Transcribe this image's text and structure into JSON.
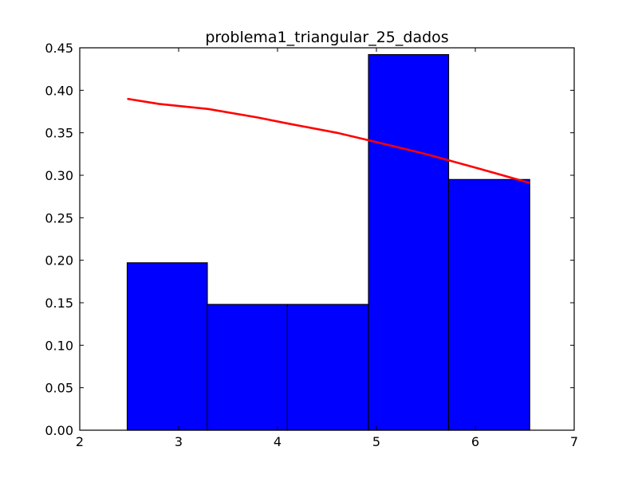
{
  "chart_data": {
    "type": "bar",
    "title": "problema1_triangular_25_dados",
    "xlabel": "",
    "ylabel": "",
    "xlim": [
      2,
      7
    ],
    "ylim": [
      0,
      0.45
    ],
    "x_ticks": [
      "2",
      "3",
      "4",
      "5",
      "6",
      "7"
    ],
    "y_ticks": [
      "0.00",
      "0.05",
      "0.10",
      "0.15",
      "0.20",
      "0.25",
      "0.30",
      "0.35",
      "0.40",
      "0.45"
    ],
    "grid": false,
    "bars": [
      {
        "x0": 2.48,
        "x1": 3.29,
        "value": 0.197
      },
      {
        "x0": 3.29,
        "x1": 4.1,
        "value": 0.148
      },
      {
        "x0": 4.1,
        "x1": 4.92,
        "value": 0.148
      },
      {
        "x0": 4.92,
        "x1": 5.73,
        "value": 0.442
      },
      {
        "x0": 5.73,
        "x1": 6.55,
        "value": 0.295
      }
    ],
    "line": {
      "x": [
        2.48,
        2.8,
        3.3,
        3.8,
        4.1,
        4.6,
        5.0,
        5.5,
        6.0,
        6.55
      ],
      "y": [
        0.39,
        0.384,
        0.378,
        0.368,
        0.361,
        0.35,
        0.339,
        0.325,
        0.309,
        0.291
      ]
    },
    "colors": {
      "bar_fill": "#0000ff",
      "bar_edge": "#000000",
      "line": "#ff0000"
    }
  }
}
